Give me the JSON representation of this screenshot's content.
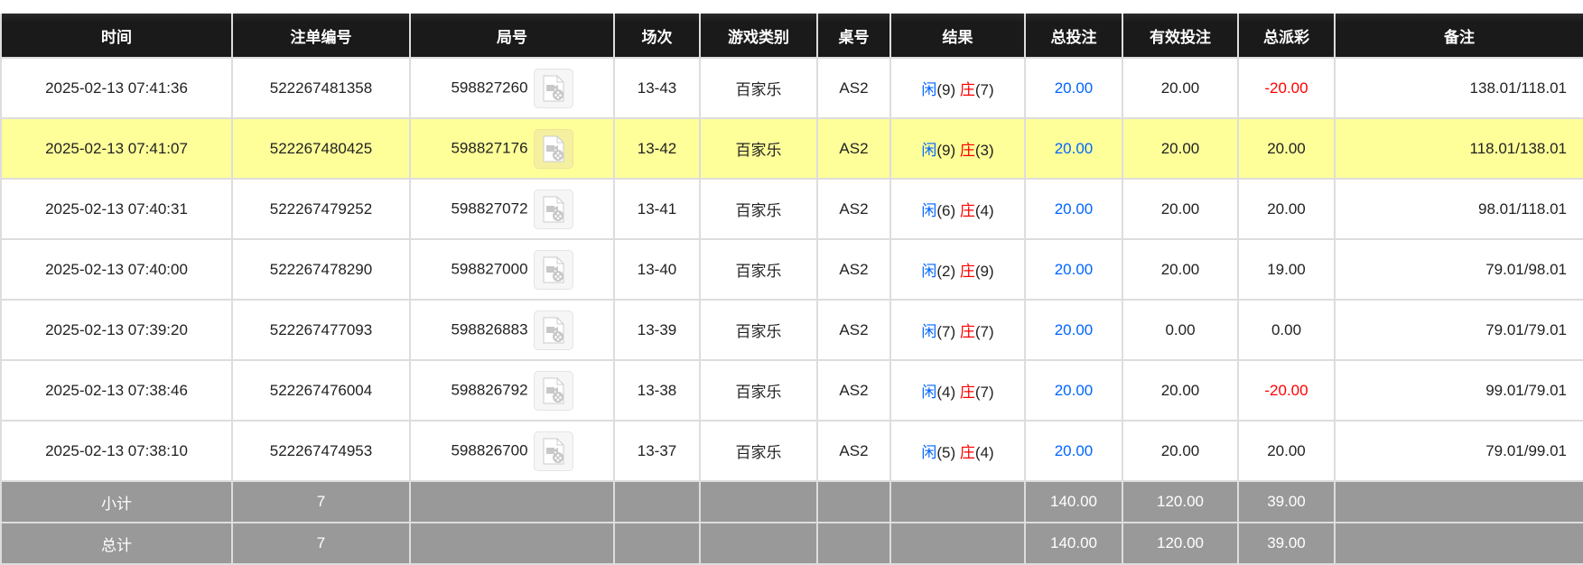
{
  "headers": [
    "时间",
    "注单编号",
    "局号",
    "场次",
    "游戏类别",
    "桌号",
    "结果",
    "总投注",
    "有效投注",
    "总派彩",
    "备注"
  ],
  "rows": [
    {
      "time": "2025-02-13 07:41:36",
      "bet_id": "522267481358",
      "round": "598827260",
      "shoe": "13-43",
      "game": "百家乐",
      "table": "AS2",
      "player_label": "闲",
      "player": "(9)",
      "banker_label": "庄",
      "banker": "(7)",
      "total_bet": "20.00",
      "valid_bet": "20.00",
      "payout": "-20.00",
      "payout_negative": true,
      "remark": "138.01/118.01",
      "highlight": false
    },
    {
      "time": "2025-02-13 07:41:07",
      "bet_id": "522267480425",
      "round": "598827176",
      "shoe": "13-42",
      "game": "百家乐",
      "table": "AS2",
      "player_label": "闲",
      "player": "(9)",
      "banker_label": "庄",
      "banker": "(3)",
      "total_bet": "20.00",
      "valid_bet": "20.00",
      "payout": "20.00",
      "payout_negative": false,
      "remark": "118.01/138.01",
      "highlight": true
    },
    {
      "time": "2025-02-13 07:40:31",
      "bet_id": "522267479252",
      "round": "598827072",
      "shoe": "13-41",
      "game": "百家乐",
      "table": "AS2",
      "player_label": "闲",
      "player": "(6)",
      "banker_label": "庄",
      "banker": "(4)",
      "total_bet": "20.00",
      "valid_bet": "20.00",
      "payout": "20.00",
      "payout_negative": false,
      "remark": "98.01/118.01",
      "highlight": false
    },
    {
      "time": "2025-02-13 07:40:00",
      "bet_id": "522267478290",
      "round": "598827000",
      "shoe": "13-40",
      "game": "百家乐",
      "table": "AS2",
      "player_label": "闲",
      "player": "(2)",
      "banker_label": "庄",
      "banker": "(9)",
      "total_bet": "20.00",
      "valid_bet": "20.00",
      "payout": "19.00",
      "payout_negative": false,
      "remark": "79.01/98.01",
      "highlight": false
    },
    {
      "time": "2025-02-13 07:39:20",
      "bet_id": "522267477093",
      "round": "598826883",
      "shoe": "13-39",
      "game": "百家乐",
      "table": "AS2",
      "player_label": "闲",
      "player": "(7)",
      "banker_label": "庄",
      "banker": "(7)",
      "total_bet": "20.00",
      "valid_bet": "0.00",
      "payout": "0.00",
      "payout_negative": false,
      "remark": "79.01/79.01",
      "highlight": false
    },
    {
      "time": "2025-02-13 07:38:46",
      "bet_id": "522267476004",
      "round": "598826792",
      "shoe": "13-38",
      "game": "百家乐",
      "table": "AS2",
      "player_label": "闲",
      "player": "(4)",
      "banker_label": "庄",
      "banker": "(7)",
      "total_bet": "20.00",
      "valid_bet": "20.00",
      "payout": "-20.00",
      "payout_negative": true,
      "remark": "99.01/79.01",
      "highlight": false
    },
    {
      "time": "2025-02-13 07:38:10",
      "bet_id": "522267474953",
      "round": "598826700",
      "shoe": "13-37",
      "game": "百家乐",
      "table": "AS2",
      "player_label": "闲",
      "player": "(5)",
      "banker_label": "庄",
      "banker": "(4)",
      "total_bet": "20.00",
      "valid_bet": "20.00",
      "payout": "20.00",
      "payout_negative": false,
      "remark": "79.01/99.01",
      "highlight": false
    }
  ],
  "footer": [
    {
      "label": "小计",
      "count": "7",
      "total_bet": "140.00",
      "valid_bet": "120.00",
      "payout": "39.00"
    },
    {
      "label": "总计",
      "count": "7",
      "total_bet": "140.00",
      "valid_bet": "120.00",
      "payout": "39.00"
    }
  ],
  "colors": {
    "player": "#0066ff",
    "banker": "#ff0000",
    "highlight": "#ffff99",
    "header": "#1a1a1a",
    "footer": "#999999"
  },
  "icons": {
    "replay": "video-replay-icon"
  }
}
